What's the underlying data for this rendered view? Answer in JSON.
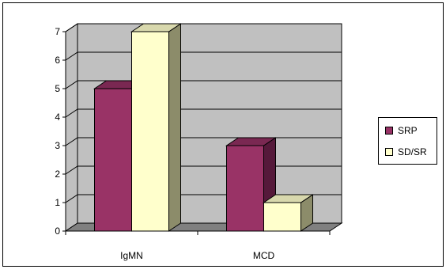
{
  "chart_data": {
    "type": "bar",
    "title": "",
    "xlabel": "",
    "ylabel": "",
    "categories": [
      "IgMN",
      "MCD"
    ],
    "series": [
      {
        "name": "SRP",
        "values": [
          5,
          3
        ]
      },
      {
        "name": "SD/SR",
        "values": [
          7,
          1
        ]
      }
    ],
    "ylim": [
      0,
      7
    ],
    "yticks": [
      "0",
      "1",
      "2",
      "3",
      "4",
      "5",
      "6",
      "7"
    ],
    "grid": true,
    "legend_position": "right",
    "colors": {
      "SRP": "#993366",
      "SRP_top": "#7a2852",
      "SRP_side": "#55193a",
      "SD/SR": "#ffffcc",
      "SD/SR_top": "#d8d8ad",
      "SD/SR_side": "#8c8c6a",
      "plot_back": "#c0c0c0",
      "plot_floor": "#808080"
    }
  }
}
